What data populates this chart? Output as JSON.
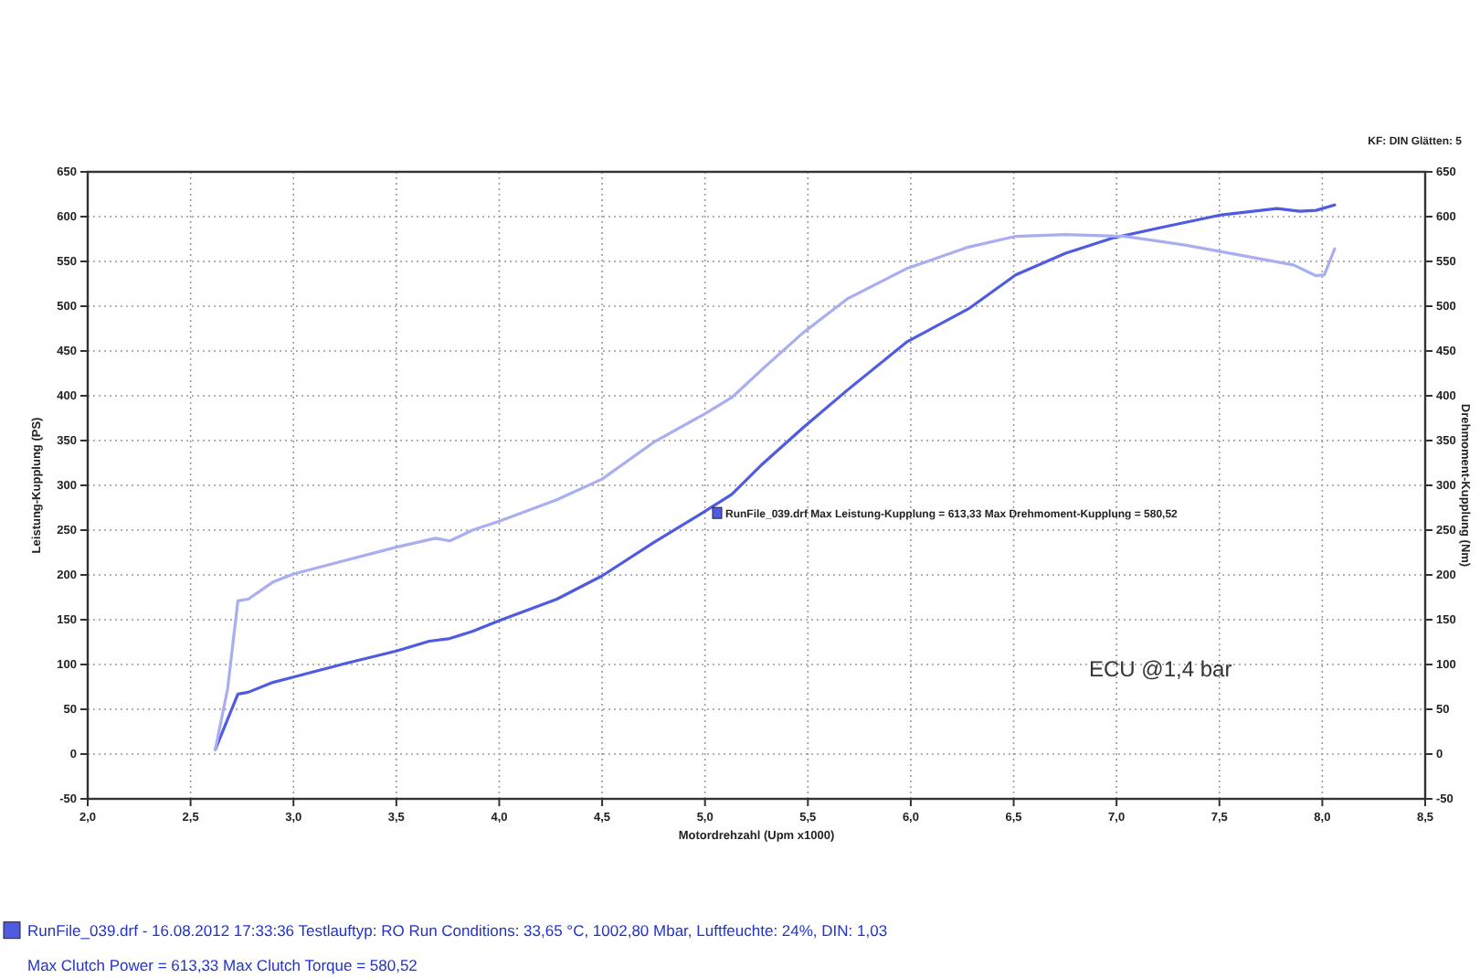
{
  "chart_data": {
    "type": "line",
    "xlabel": "Motordrehzahl (Upm x1000)",
    "ylabel": "Leistung-Kupplung (PS)",
    "y2label": "Drehmoment-Kupplung (Nm)",
    "xlim": [
      2,
      8.5
    ],
    "xticks": [
      {
        "value": 2,
        "label": "2,0"
      },
      {
        "value": 2.5,
        "label": "2,5"
      },
      {
        "value": 3,
        "label": "3,0"
      },
      {
        "value": 3.5,
        "label": "3,5"
      },
      {
        "value": 4,
        "label": "4,0"
      },
      {
        "value": 4.5,
        "label": "4,5"
      },
      {
        "value": 5,
        "label": "5,0"
      },
      {
        "value": 5.5,
        "label": "5,5"
      },
      {
        "value": 6,
        "label": "6,0"
      },
      {
        "value": 6.5,
        "label": "6,5"
      },
      {
        "value": 7,
        "label": "7,0"
      },
      {
        "value": 7.5,
        "label": "7,5"
      },
      {
        "value": 8,
        "label": "8,0"
      },
      {
        "value": 8.5,
        "label": "8,5"
      }
    ],
    "ylim": [
      -50,
      650
    ],
    "yticks": [
      -50,
      0,
      50,
      100,
      150,
      200,
      250,
      300,
      350,
      400,
      450,
      500,
      550,
      600,
      650
    ],
    "y2lim": [
      -50,
      650
    ],
    "y2ticks": [
      -50,
      0,
      50,
      100,
      150,
      200,
      250,
      300,
      350,
      400,
      450,
      500,
      550,
      600,
      650
    ],
    "grid": true,
    "marker": "none",
    "line_style": "solid",
    "series": [
      {
        "color": "#4f5be0",
        "x": [
          2.62,
          2.68,
          2.73,
          2.78,
          2.9,
          3.0,
          3.25,
          3.5,
          3.66,
          3.76,
          3.87,
          4.0,
          4.28,
          4.5,
          4.75,
          5.0,
          5.13,
          5.28,
          5.48,
          5.69,
          5.98,
          6.28,
          6.51,
          6.75,
          6.98,
          7.22,
          7.51,
          7.78,
          7.89,
          7.97,
          8.06
        ],
        "values": [
          5,
          39,
          67,
          69,
          80,
          86,
          101,
          115,
          126,
          129,
          137,
          149,
          173,
          199,
          236,
          271,
          290,
          324,
          365,
          406,
          460,
          497,
          535,
          559,
          576,
          588,
          602,
          609,
          606,
          607,
          613
        ]
      },
      {
        "color": "#a9aef0",
        "x": [
          2.62,
          2.68,
          2.73,
          2.78,
          2.9,
          3.0,
          3.25,
          3.5,
          3.69,
          3.76,
          3.87,
          4.0,
          4.28,
          4.5,
          4.75,
          5.0,
          5.13,
          5.28,
          5.48,
          5.69,
          5.98,
          6.28,
          6.51,
          6.75,
          7.04,
          7.34,
          7.6,
          7.86,
          7.97,
          8.01,
          8.06
        ],
        "values": [
          5,
          73,
          171,
          173,
          192,
          201,
          216,
          231,
          241,
          238,
          250,
          260,
          284,
          307,
          348,
          380,
          398,
          430,
          471,
          508,
          542,
          566,
          578,
          580,
          578,
          568,
          557,
          546,
          534,
          535,
          564
        ]
      }
    ],
    "annotations": [
      "KF: DIN  Glätten: 5",
      "RunFile_039.drf Max Leistung-Kupplung = 613,33     Max Drehmoment-Kupplung = 580,52",
      "ECU @1,4 bar",
      "RunFile_039.drf - 16.08.2012 17:33:36  Testlauftyp: RO  Run Conditions: 33,65 °C, 1002,80 Mbar,  Luftfeuchte: 24%, DIN: 1,03",
      "Max Clutch Power = 613,33  Max Clutch Torque = 580,52"
    ]
  }
}
